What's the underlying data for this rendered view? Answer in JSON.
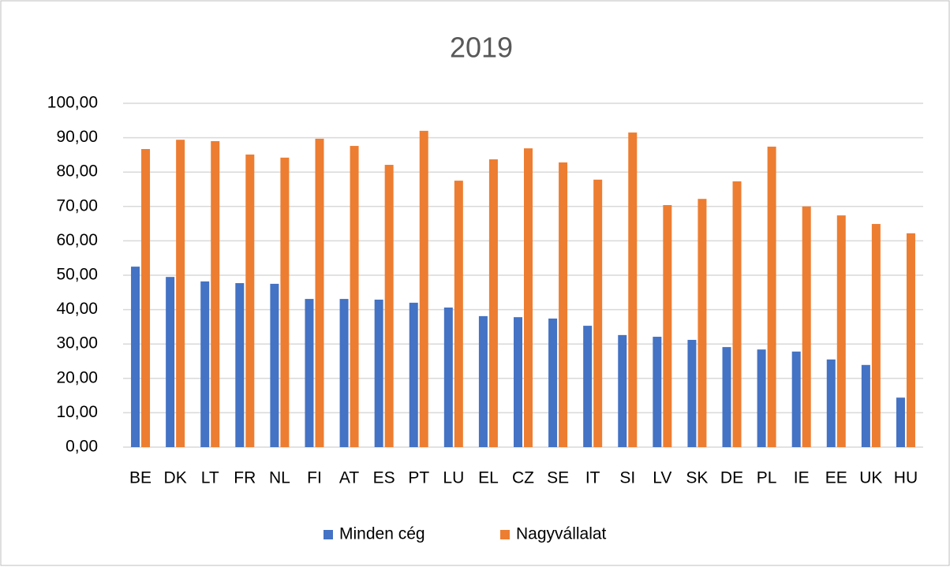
{
  "chart_data": {
    "type": "bar",
    "title": "2019",
    "categories": [
      "BE",
      "DK",
      "LT",
      "FR",
      "NL",
      "FI",
      "AT",
      "ES",
      "PT",
      "LU",
      "EL",
      "CZ",
      "SE",
      "IT",
      "SI",
      "LV",
      "SK",
      "DE",
      "PL",
      "IE",
      "EE",
      "UK",
      "HU"
    ],
    "series": [
      {
        "name": "Minden cég",
        "color": "#4472c4",
        "values": [
          52.5,
          49.5,
          48.2,
          47.7,
          47.5,
          43.1,
          43.1,
          42.9,
          42.0,
          40.6,
          38.1,
          37.8,
          37.4,
          35.3,
          32.6,
          32.1,
          31.2,
          29.1,
          28.4,
          27.8,
          25.5,
          23.9,
          14.4
        ]
      },
      {
        "name": "Nagyvállalat",
        "color": "#ed7d31",
        "values": [
          86.7,
          89.4,
          89.0,
          85.1,
          84.2,
          89.7,
          87.6,
          82.1,
          92.0,
          77.5,
          83.7,
          86.9,
          82.8,
          77.8,
          91.5,
          70.4,
          72.2,
          77.3,
          87.4,
          70.0,
          67.4,
          64.9,
          62.2
        ]
      }
    ],
    "ylim": [
      0,
      100
    ],
    "yticks": [
      {
        "value": 0,
        "label": "0,00"
      },
      {
        "value": 10,
        "label": "10,00"
      },
      {
        "value": 20,
        "label": "20,00"
      },
      {
        "value": 30,
        "label": "30,00"
      },
      {
        "value": 40,
        "label": "40,00"
      },
      {
        "value": 50,
        "label": "50,00"
      },
      {
        "value": 60,
        "label": "60,00"
      },
      {
        "value": 70,
        "label": "70,00"
      },
      {
        "value": 80,
        "label": "80,00"
      },
      {
        "value": 90,
        "label": "90,00"
      },
      {
        "value": 100,
        "label": "100,00"
      }
    ],
    "grid": true,
    "legend": "bottom"
  }
}
